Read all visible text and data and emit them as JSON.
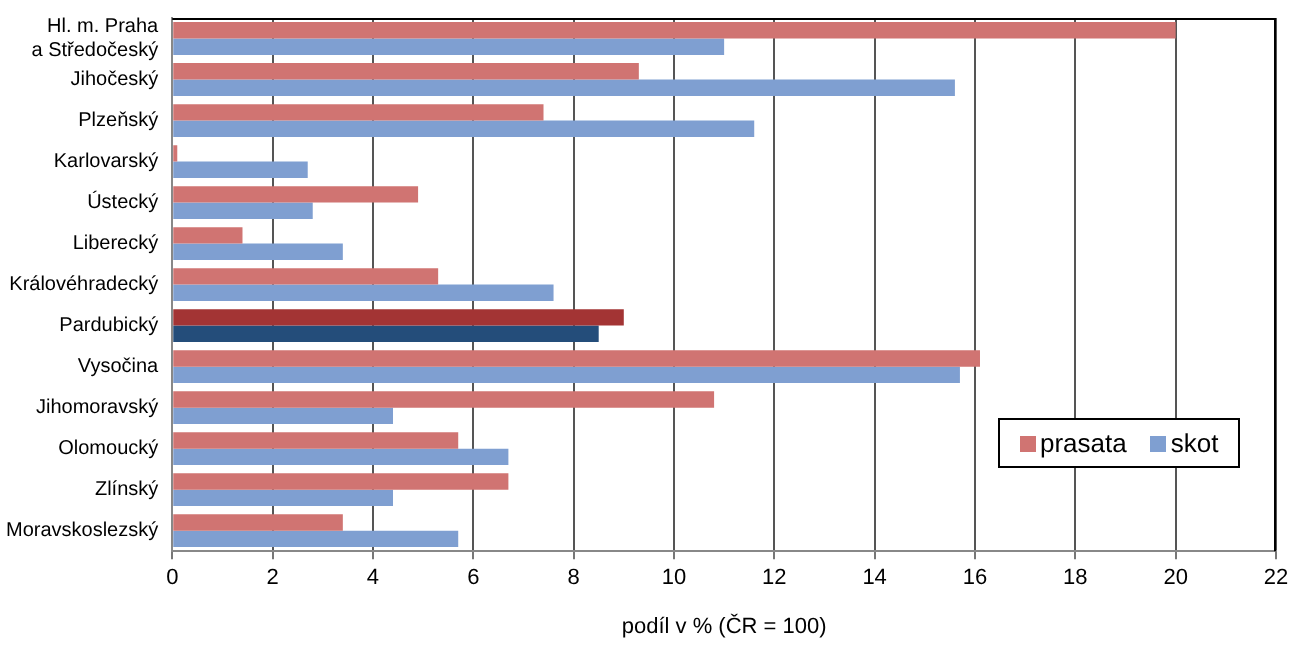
{
  "chart_data": {
    "type": "bar",
    "orientation": "horizontal",
    "xlabel": "podíl v % (ČR = 100)",
    "categories": [
      "Hl. m. Praha\na Středočeský",
      "Jihočeský",
      "Plzeňský",
      "Karlovarský",
      "Ústecký",
      "Liberecký",
      "Královéhradecký",
      "Pardubický",
      "Vysočina",
      "Jihomoravský",
      "Olomoucký",
      "Zlínský",
      "Moravskoslezský"
    ],
    "series": [
      {
        "name": "prasata",
        "color": "#d07472",
        "colors": [
          "#d07472",
          "#d07472",
          "#d07472",
          "#d07472",
          "#d07472",
          "#d07472",
          "#d07472",
          "#a33434",
          "#d07472",
          "#d07472",
          "#d07472",
          "#d07472",
          "#d07472"
        ],
        "values": [
          20.0,
          9.3,
          7.4,
          0.1,
          4.9,
          1.4,
          5.3,
          9.0,
          16.1,
          10.8,
          5.7,
          6.7,
          3.4
        ]
      },
      {
        "name": "skot",
        "color": "#7f9fd1",
        "colors": [
          "#7f9fd1",
          "#7f9fd1",
          "#7f9fd1",
          "#7f9fd1",
          "#7f9fd1",
          "#7f9fd1",
          "#7f9fd1",
          "#244d7a",
          "#7f9fd1",
          "#7f9fd1",
          "#7f9fd1",
          "#7f9fd1",
          "#7f9fd1"
        ],
        "values": [
          11.0,
          15.6,
          11.6,
          2.7,
          2.8,
          3.4,
          7.6,
          8.5,
          15.7,
          4.4,
          6.7,
          4.4,
          5.7
        ]
      }
    ],
    "xlim": [
      0,
      22
    ],
    "xticks": [
      0,
      2,
      4,
      6,
      8,
      10,
      12,
      14,
      16,
      18,
      20,
      22
    ],
    "grid": "x",
    "legend": "bottom right"
  }
}
